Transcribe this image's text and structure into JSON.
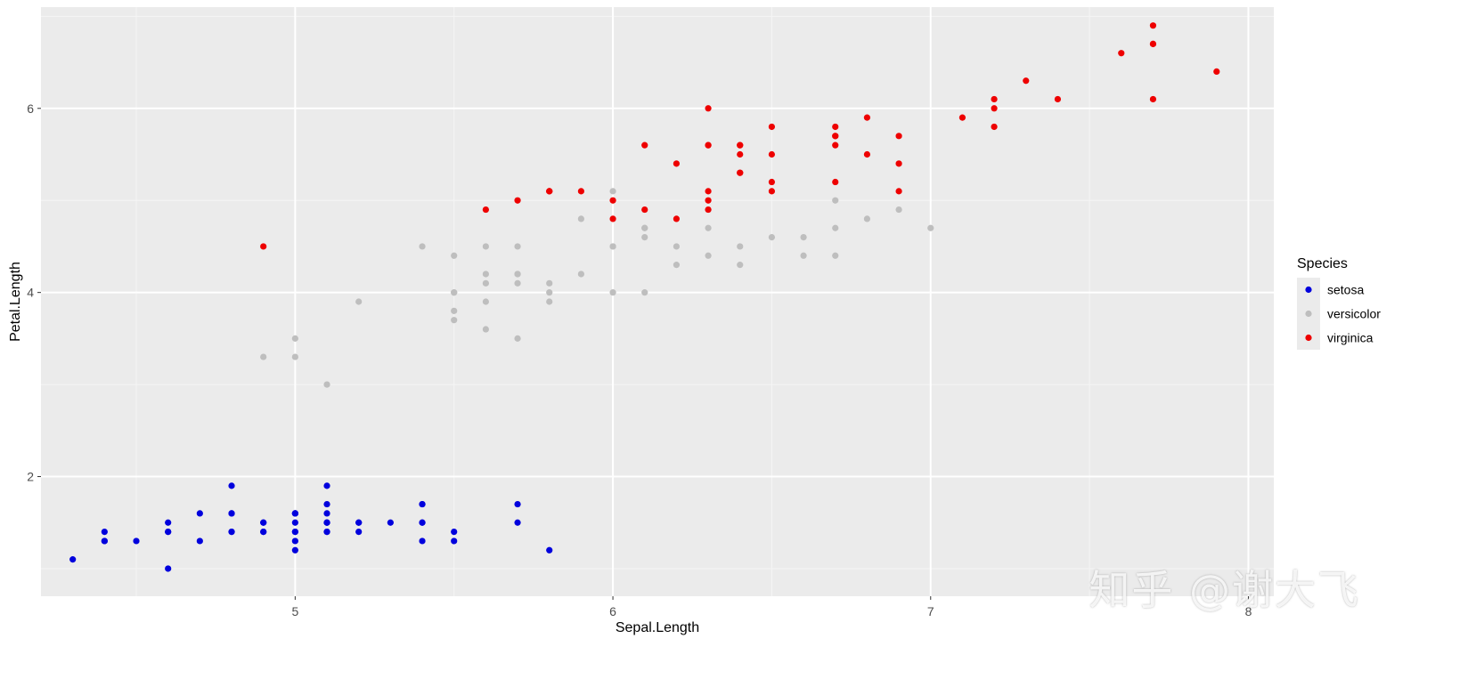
{
  "chart_data": {
    "type": "scatter",
    "title": "",
    "xlabel": "Sepal.Length",
    "ylabel": "Petal.Length",
    "xlim": [
      4.2,
      8.08
    ],
    "ylim": [
      0.7,
      7.1
    ],
    "x_ticks": [
      5,
      6,
      7,
      8
    ],
    "y_ticks": [
      2,
      4,
      6
    ],
    "grid": true,
    "legend": {
      "title": "Species",
      "placement": "right"
    },
    "series": [
      {
        "name": "setosa",
        "color": "#0000dd",
        "points": [
          [
            5.1,
            1.4
          ],
          [
            4.9,
            1.4
          ],
          [
            4.7,
            1.3
          ],
          [
            4.6,
            1.5
          ],
          [
            5.0,
            1.4
          ],
          [
            5.4,
            1.7
          ],
          [
            4.6,
            1.4
          ],
          [
            5.0,
            1.5
          ],
          [
            4.4,
            1.4
          ],
          [
            4.9,
            1.5
          ],
          [
            5.4,
            1.5
          ],
          [
            4.8,
            1.6
          ],
          [
            4.8,
            1.4
          ],
          [
            4.3,
            1.1
          ],
          [
            5.8,
            1.2
          ],
          [
            5.7,
            1.5
          ],
          [
            5.4,
            1.3
          ],
          [
            5.1,
            1.4
          ],
          [
            5.7,
            1.7
          ],
          [
            5.1,
            1.5
          ],
          [
            5.4,
            1.7
          ],
          [
            5.1,
            1.5
          ],
          [
            4.6,
            1.0
          ],
          [
            5.1,
            1.7
          ],
          [
            4.8,
            1.9
          ],
          [
            5.0,
            1.6
          ],
          [
            5.0,
            1.6
          ],
          [
            5.2,
            1.5
          ],
          [
            5.2,
            1.4
          ],
          [
            4.7,
            1.6
          ],
          [
            4.8,
            1.6
          ],
          [
            5.4,
            1.5
          ],
          [
            5.2,
            1.5
          ],
          [
            5.5,
            1.4
          ],
          [
            4.9,
            1.5
          ],
          [
            5.0,
            1.2
          ],
          [
            5.5,
            1.3
          ],
          [
            4.9,
            1.4
          ],
          [
            4.4,
            1.3
          ],
          [
            5.1,
            1.5
          ],
          [
            5.0,
            1.3
          ],
          [
            4.5,
            1.3
          ],
          [
            4.4,
            1.3
          ],
          [
            5.0,
            1.6
          ],
          [
            5.1,
            1.9
          ],
          [
            4.8,
            1.4
          ],
          [
            5.1,
            1.6
          ],
          [
            4.6,
            1.4
          ],
          [
            5.3,
            1.5
          ],
          [
            5.0,
            1.4
          ]
        ]
      },
      {
        "name": "versicolor",
        "color": "#bebebe",
        "points": [
          [
            7.0,
            4.7
          ],
          [
            6.4,
            4.5
          ],
          [
            6.9,
            4.9
          ],
          [
            5.5,
            4.0
          ],
          [
            6.5,
            4.6
          ],
          [
            5.7,
            4.5
          ],
          [
            6.3,
            4.7
          ],
          [
            4.9,
            3.3
          ],
          [
            6.6,
            4.6
          ],
          [
            5.2,
            3.9
          ],
          [
            5.0,
            3.5
          ],
          [
            5.9,
            4.2
          ],
          [
            6.0,
            4.0
          ],
          [
            6.1,
            4.7
          ],
          [
            5.6,
            3.6
          ],
          [
            6.7,
            4.4
          ],
          [
            5.6,
            4.5
          ],
          [
            5.8,
            4.1
          ],
          [
            6.2,
            4.5
          ],
          [
            5.6,
            3.9
          ],
          [
            5.9,
            4.8
          ],
          [
            6.1,
            4.0
          ],
          [
            6.3,
            4.9
          ],
          [
            6.1,
            4.7
          ],
          [
            6.4,
            4.3
          ],
          [
            6.6,
            4.4
          ],
          [
            6.8,
            4.8
          ],
          [
            6.7,
            5.0
          ],
          [
            6.0,
            4.5
          ],
          [
            5.7,
            3.5
          ],
          [
            5.5,
            3.8
          ],
          [
            5.5,
            3.7
          ],
          [
            5.8,
            3.9
          ],
          [
            6.0,
            5.1
          ],
          [
            5.4,
            4.5
          ],
          [
            6.0,
            4.5
          ],
          [
            6.7,
            4.7
          ],
          [
            6.3,
            4.4
          ],
          [
            5.6,
            4.1
          ],
          [
            5.5,
            4.0
          ],
          [
            5.5,
            4.4
          ],
          [
            6.1,
            4.6
          ],
          [
            5.8,
            4.0
          ],
          [
            5.0,
            3.3
          ],
          [
            5.6,
            4.2
          ],
          [
            5.7,
            4.2
          ],
          [
            5.7,
            4.2
          ],
          [
            6.2,
            4.3
          ],
          [
            5.1,
            3.0
          ],
          [
            5.7,
            4.1
          ]
        ]
      },
      {
        "name": "virginica",
        "color": "#ee0000",
        "points": [
          [
            6.3,
            6.0
          ],
          [
            5.8,
            5.1
          ],
          [
            7.1,
            5.9
          ],
          [
            6.3,
            5.6
          ],
          [
            6.5,
            5.8
          ],
          [
            7.6,
            6.6
          ],
          [
            4.9,
            4.5
          ],
          [
            7.3,
            6.3
          ],
          [
            6.7,
            5.8
          ],
          [
            7.2,
            6.1
          ],
          [
            6.5,
            5.1
          ],
          [
            6.4,
            5.3
          ],
          [
            6.8,
            5.5
          ],
          [
            5.7,
            5.0
          ],
          [
            5.8,
            5.1
          ],
          [
            6.4,
            5.3
          ],
          [
            6.5,
            5.5
          ],
          [
            7.7,
            6.7
          ],
          [
            7.7,
            6.9
          ],
          [
            6.0,
            5.0
          ],
          [
            6.9,
            5.7
          ],
          [
            5.6,
            4.9
          ],
          [
            7.7,
            6.7
          ],
          [
            6.3,
            4.9
          ],
          [
            6.7,
            5.7
          ],
          [
            7.2,
            6.0
          ],
          [
            6.2,
            4.8
          ],
          [
            6.1,
            4.9
          ],
          [
            6.4,
            5.6
          ],
          [
            7.2,
            5.8
          ],
          [
            7.4,
            6.1
          ],
          [
            7.9,
            6.4
          ],
          [
            6.4,
            5.6
          ],
          [
            6.3,
            5.1
          ],
          [
            6.1,
            5.6
          ],
          [
            7.7,
            6.1
          ],
          [
            6.3,
            5.6
          ],
          [
            6.4,
            5.5
          ],
          [
            6.0,
            4.8
          ],
          [
            6.9,
            5.4
          ],
          [
            6.7,
            5.6
          ],
          [
            6.9,
            5.1
          ],
          [
            5.8,
            5.1
          ],
          [
            6.8,
            5.9
          ],
          [
            6.7,
            5.7
          ],
          [
            6.7,
            5.2
          ],
          [
            6.3,
            5.0
          ],
          [
            6.5,
            5.2
          ],
          [
            6.2,
            5.4
          ],
          [
            5.9,
            5.1
          ]
        ]
      }
    ]
  },
  "watermark": "知乎 @谢大飞"
}
